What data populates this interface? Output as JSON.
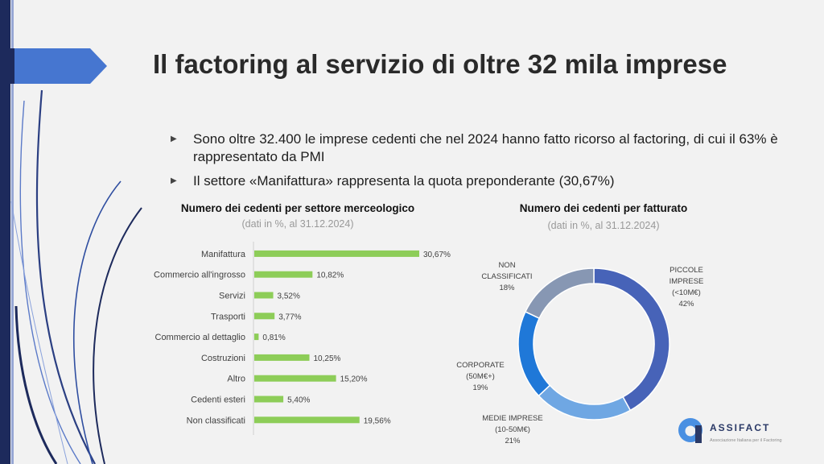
{
  "slide": {
    "title": "Il factoring al servizio di oltre 32 mila imprese",
    "bullets": [
      "Sono oltre 32.400 le imprese cedenti che nel 2024 hanno fatto ricorso al factoring, di cui il 63% è rappresentato da PMI",
      "Il settore «Manifattura» rappresenta la quota preponderante (30,67%)"
    ]
  },
  "logo": {
    "name": "ASSIFACT",
    "tagline": "Associazione Italiana per il Factoring"
  },
  "colors": {
    "bar": "#8dcd58",
    "navy": "#1d2a5c",
    "donut": [
      "#4763b8",
      "#6fa7e3",
      "#1f78d8",
      "#8797b3"
    ]
  },
  "chart_data": [
    {
      "type": "bar",
      "orientation": "horizontal",
      "title": "Numero dei cedenti per settore merceologico",
      "subtitle": "(dati in %, al 31.12.2024)",
      "categories": [
        "Manifattura",
        "Commercio all'ingrosso",
        "Servizi",
        "Trasporti",
        "Commercio al dettaglio",
        "Costruzioni",
        "Altro",
        "Cedenti esteri",
        "Non classificati"
      ],
      "values": [
        30.67,
        10.82,
        3.52,
        3.77,
        0.81,
        10.25,
        15.2,
        5.4,
        19.56
      ],
      "labels": [
        "30,67%",
        "10,82%",
        "3,52%",
        "3,77%",
        "0,81%",
        "10,25%",
        "15,20%",
        "5,40%",
        "19,56%"
      ],
      "xlim": [
        0,
        35
      ]
    },
    {
      "type": "pie",
      "style": "donut",
      "title": "Numero dei cedenti per fatturato",
      "subtitle": "(dati in %, al 31.12.2024)",
      "slices": [
        {
          "name": "PICCOLE IMPRESE (<10M€)",
          "lines": [
            "PICCOLE",
            "IMPRESE",
            "(<10M€)",
            "42%"
          ],
          "value": 42
        },
        {
          "name": "MEDIE IMPRESE (10-50M€)",
          "lines": [
            "MEDIE IMPRESE",
            "(10-50M€)",
            "21%"
          ],
          "value": 21
        },
        {
          "name": "CORPORATE (50M€+)",
          "lines": [
            "CORPORATE",
            "(50M€+)",
            "19%"
          ],
          "value": 19
        },
        {
          "name": "NON CLASSIFICATI",
          "lines": [
            "NON",
            "CLASSIFICATI",
            "18%"
          ],
          "value": 18
        }
      ]
    }
  ]
}
